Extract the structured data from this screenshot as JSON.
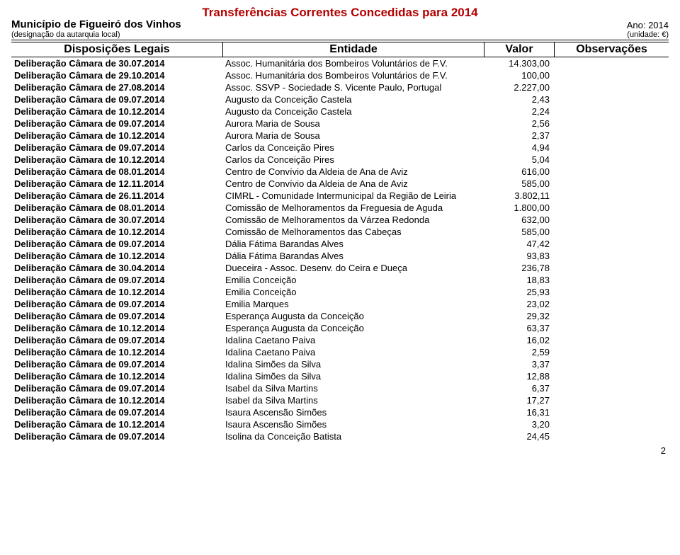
{
  "title": "Transferências Correntes Concedidas para 2014",
  "municipio": "Município de Figueiró dos Vinhos",
  "ano_label": "Ano: 2014",
  "designacao": "(designação da autarquia local)",
  "unidade": "(unidade: €)",
  "headers": {
    "disp": "Disposições Legais",
    "ent": "Entidade",
    "val": "Valor",
    "obs": "Observações"
  },
  "page_number": "2",
  "rows": [
    {
      "disp": "Deliberação Câmara de 30.07.2014",
      "ent": "Assoc. Humanitária dos Bombeiros Voluntários de F.V.",
      "val": "14.303,00"
    },
    {
      "disp": "Deliberação Câmara de 29.10.2014",
      "ent": "Assoc. Humanitária dos Bombeiros Voluntários de F.V.",
      "val": "100,00"
    },
    {
      "disp": "Deliberação Câmara de 27.08.2014",
      "ent": "Assoc. SSVP - Sociedade S. Vicente Paulo, Portugal",
      "val": "2.227,00"
    },
    {
      "disp": "Deliberação Câmara de 09.07.2014",
      "ent": "Augusto da Conceição Castela",
      "val": "2,43"
    },
    {
      "disp": "Deliberação Câmara de 10.12.2014",
      "ent": "Augusto da Conceição Castela",
      "val": "2,24"
    },
    {
      "disp": "Deliberação Câmara de 09.07.2014",
      "ent": "Aurora Maria de Sousa",
      "val": "2,56"
    },
    {
      "disp": "Deliberação Câmara de 10.12.2014",
      "ent": "Aurora Maria de Sousa",
      "val": "2,37"
    },
    {
      "disp": "Deliberação Câmara de 09.07.2014",
      "ent": "Carlos da Conceição Pires",
      "val": "4,94"
    },
    {
      "disp": "Deliberação Câmara de 10.12.2014",
      "ent": "Carlos da Conceição Pires",
      "val": "5,04"
    },
    {
      "disp": "Deliberação Câmara de 08.01.2014",
      "ent": "Centro de Convívio da Aldeia de Ana de Aviz",
      "val": "616,00"
    },
    {
      "disp": "Deliberação Câmara de 12.11.2014",
      "ent": "Centro de Convívio da Aldeia de Ana de Aviz",
      "val": "585,00"
    },
    {
      "disp": "Deliberação Câmara de 26.11.2014",
      "ent": "CIMRL - Comunidade Intermunicipal da Região de Leiria",
      "val": "3.802,11"
    },
    {
      "disp": "Deliberação Câmara de 08.01.2014",
      "ent": "Comissão de Melhoramentos da Freguesia de Aguda",
      "val": "1.800,00"
    },
    {
      "disp": "Deliberação Câmara de 30.07.2014",
      "ent": "Comissão de Melhoramentos da Várzea Redonda",
      "val": "632,00"
    },
    {
      "disp": "Deliberação Câmara de 10.12.2014",
      "ent": "Comissão de Melhoramentos das Cabeças",
      "val": "585,00"
    },
    {
      "disp": "Deliberação Câmara de 09.07.2014",
      "ent": "Dália Fátima Barandas Alves",
      "val": "47,42"
    },
    {
      "disp": "Deliberação Câmara de 10.12.2014",
      "ent": "Dália Fátima Barandas Alves",
      "val": "93,83"
    },
    {
      "disp": "Deliberação Câmara de 30.04.2014",
      "ent": "Dueceira - Assoc. Desenv. do Ceira e Dueça",
      "val": "236,78"
    },
    {
      "disp": "Deliberação Câmara de 09.07.2014",
      "ent": "Emilia Conceição",
      "val": "18,83"
    },
    {
      "disp": "Deliberação Câmara de 10.12.2014",
      "ent": "Emilia Conceição",
      "val": "25,93"
    },
    {
      "disp": "Deliberação Câmara de 09.07.2014",
      "ent": "Emilia Marques",
      "val": "23,02"
    },
    {
      "disp": "Deliberação Câmara de 09.07.2014",
      "ent": "Esperança Augusta da Conceição",
      "val": "29,32"
    },
    {
      "disp": "Deliberação Câmara de 10.12.2014",
      "ent": "Esperança Augusta da Conceição",
      "val": "63,37"
    },
    {
      "disp": "Deliberação Câmara de 09.07.2014",
      "ent": "Idalina Caetano Paiva",
      "val": "16,02"
    },
    {
      "disp": "Deliberação Câmara de 10.12.2014",
      "ent": "Idalina Caetano Paiva",
      "val": "2,59"
    },
    {
      "disp": "Deliberação Câmara de 09.07.2014",
      "ent": "Idalina Simões da Silva",
      "val": "3,37"
    },
    {
      "disp": "Deliberação Câmara de 10.12.2014",
      "ent": "Idalina Simões da Silva",
      "val": "12,88"
    },
    {
      "disp": "Deliberação Câmara de 09.07.2014",
      "ent": "Isabel da Silva Martins",
      "val": "6,37"
    },
    {
      "disp": "Deliberação Câmara de 10.12.2014",
      "ent": "Isabel da Silva Martins",
      "val": "17,27"
    },
    {
      "disp": "Deliberação Câmara de 09.07.2014",
      "ent": "Isaura Ascensão Simões",
      "val": "16,31"
    },
    {
      "disp": "Deliberação Câmara de 10.12.2014",
      "ent": "Isaura Ascensão Simões",
      "val": "3,20"
    },
    {
      "disp": "Deliberação Câmara de 09.07.2014",
      "ent": "Isolina da Conceição Batista",
      "val": "24,45"
    }
  ]
}
